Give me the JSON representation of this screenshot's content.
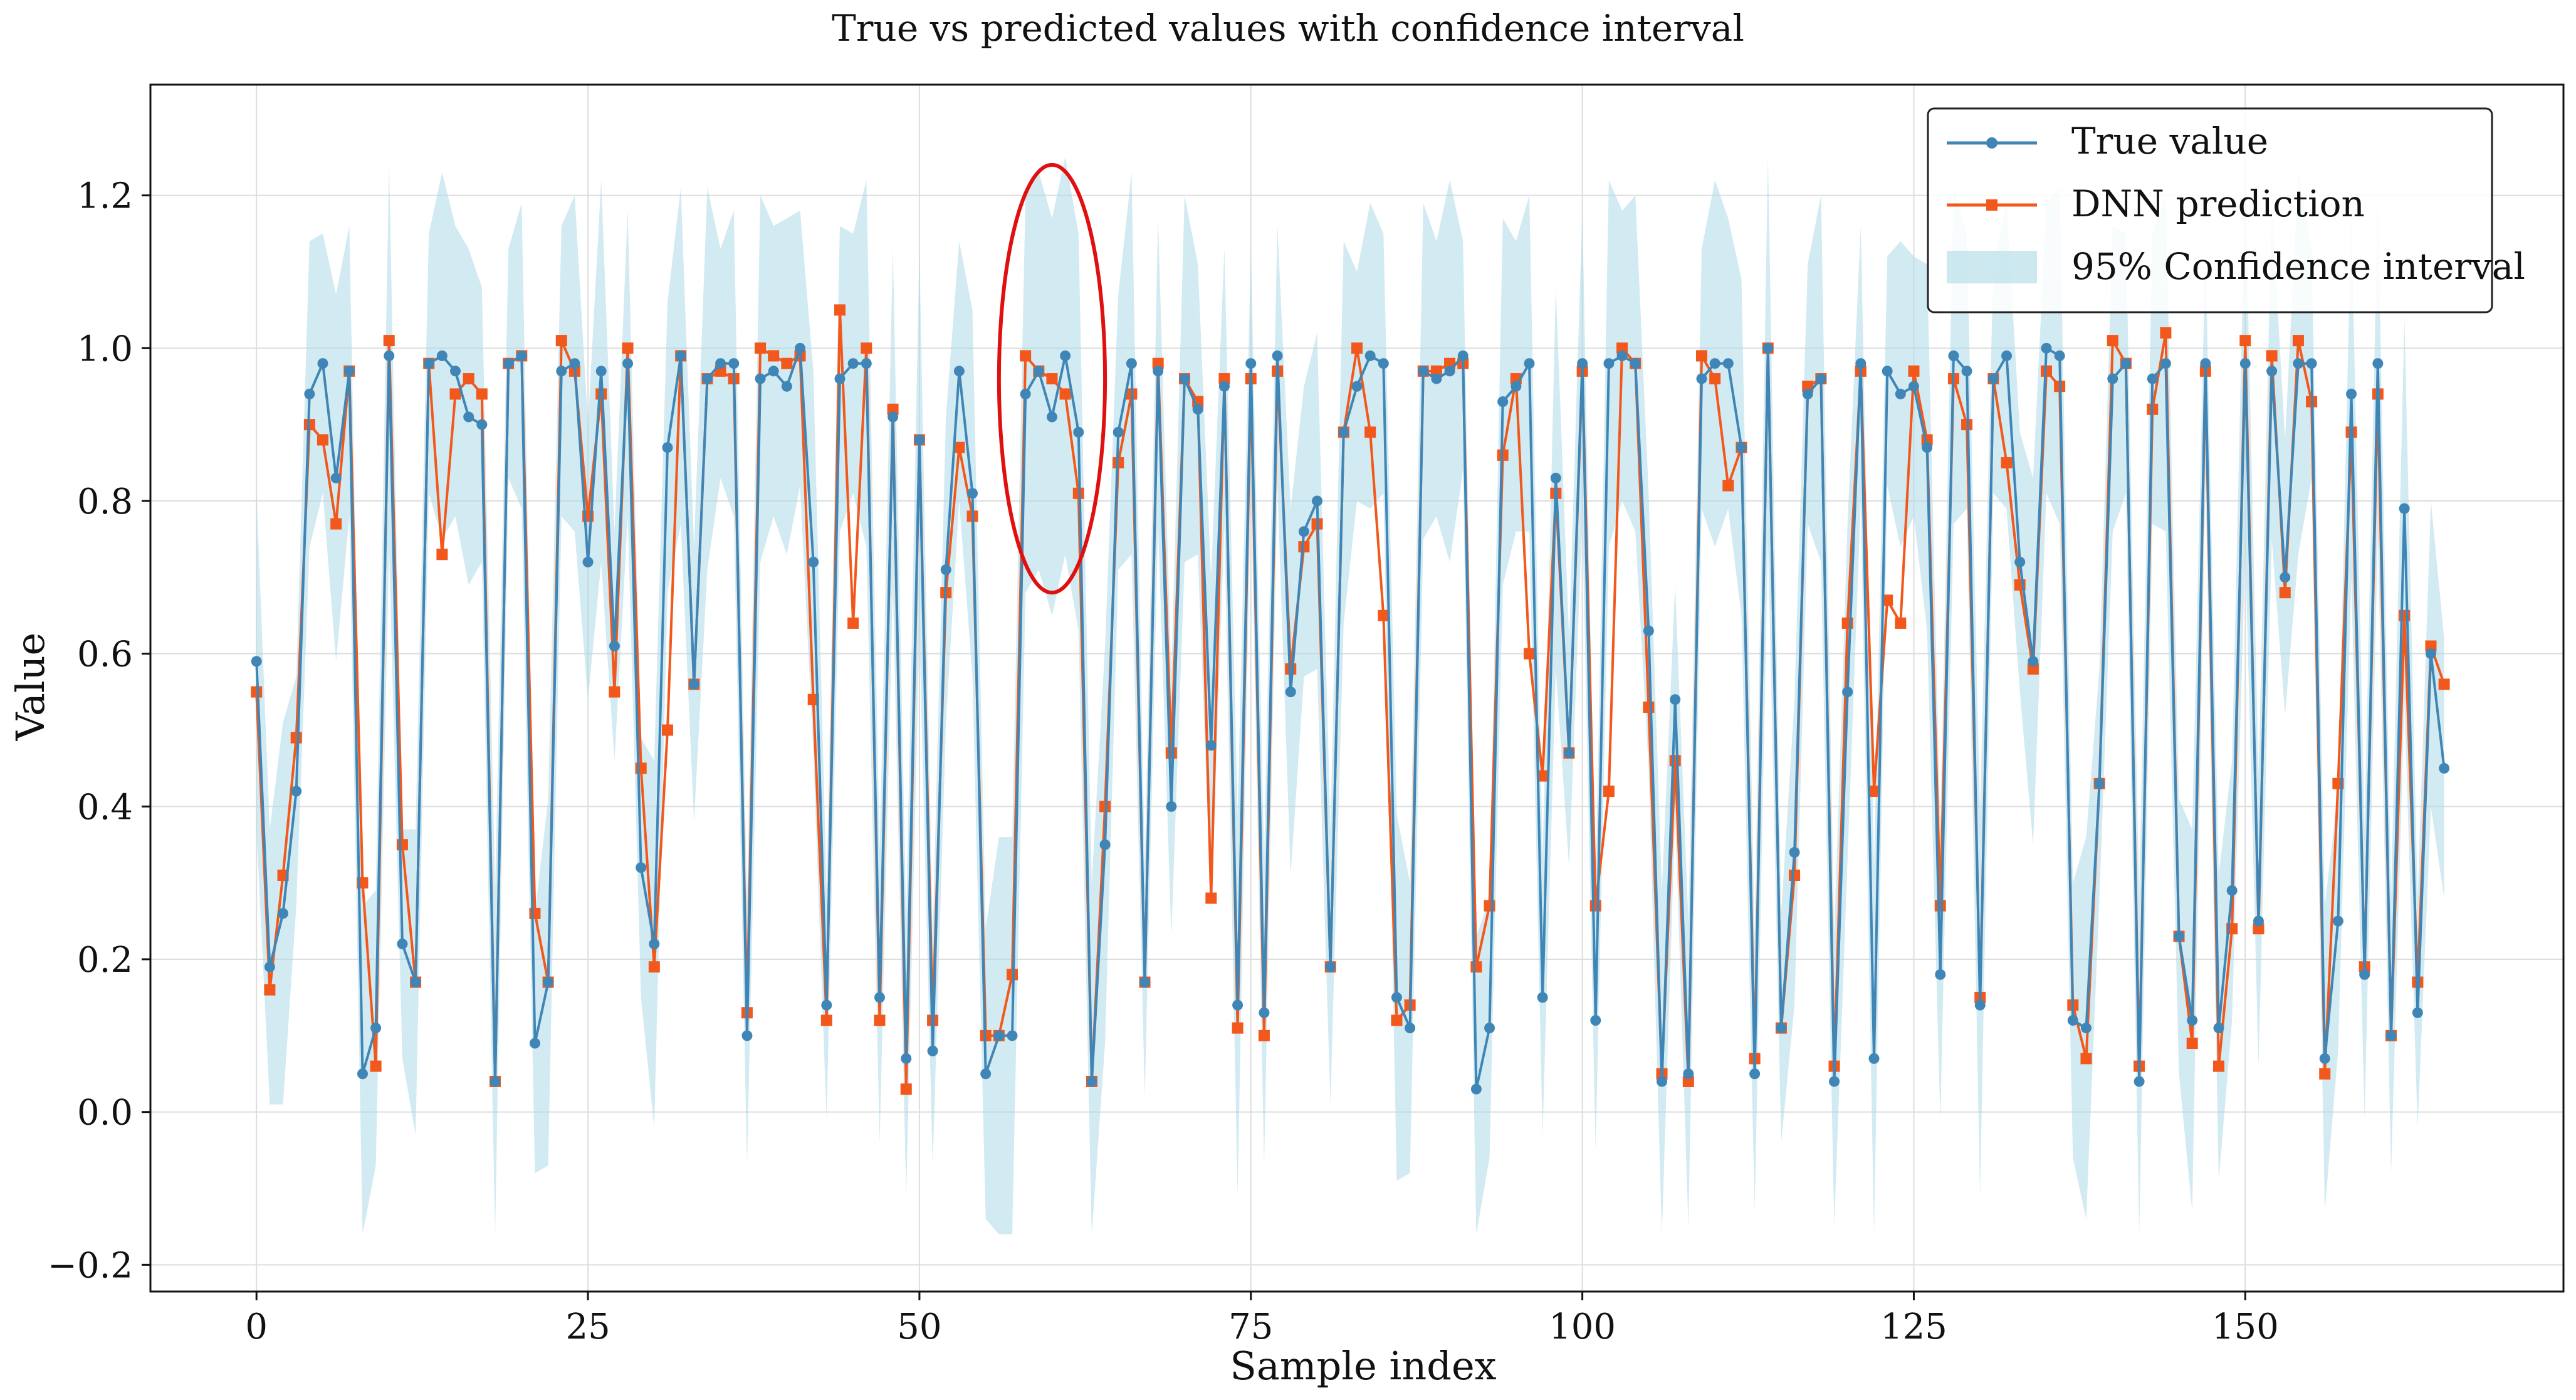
{
  "chart_data": {
    "type": "line",
    "title": "True vs predicted values with confidence interval",
    "xlabel": "Sample index",
    "ylabel": "Value",
    "xlim": [
      -8,
      174
    ],
    "ylim": [
      -0.235,
      1.345
    ],
    "xticks": [
      0,
      25,
      50,
      75,
      100,
      125,
      150
    ],
    "xtick_labels": [
      "0",
      "25",
      "50",
      "75",
      "100",
      "125",
      "150"
    ],
    "yticks": [
      -0.2,
      0.0,
      0.2,
      0.4,
      0.6,
      0.8,
      1.0,
      1.2
    ],
    "ytick_labels": [
      "−0.2",
      "0.0",
      "0.2",
      "0.4",
      "0.6",
      "0.8",
      "1.0",
      "1.2"
    ],
    "grid": true,
    "legend_position": "top-right",
    "colors": {
      "true": "#3f86b7",
      "pred": "#f2581b",
      "ci": "#add8e6",
      "highlight": "#e01010"
    },
    "highlight_region": {
      "x_center": 60,
      "x_halfwidth": 4,
      "y_min": 0.68,
      "y_max": 1.24
    },
    "series": [
      {
        "name": "True value",
        "marker": "circle",
        "values": [
          0.59,
          0.19,
          0.26,
          0.42,
          0.94,
          0.98,
          0.83,
          0.97,
          0.05,
          0.11,
          0.99,
          0.22,
          0.17,
          0.98,
          0.99,
          0.97,
          0.91,
          0.9,
          0.04,
          0.98,
          0.99,
          0.09,
          0.17,
          0.97,
          0.98,
          0.72,
          0.97,
          0.61,
          0.98,
          0.32,
          0.22,
          0.87,
          0.99,
          0.56,
          0.96,
          0.98,
          0.98,
          0.1,
          0.96,
          0.97,
          0.95,
          1.0,
          0.72,
          0.14,
          0.96,
          0.98,
          0.98,
          0.15,
          0.91,
          0.07,
          0.88,
          0.08,
          0.71,
          0.97,
          0.81,
          0.05,
          0.1,
          0.1,
          0.94,
          0.97,
          0.91,
          0.99,
          0.89,
          0.04,
          0.35,
          0.89,
          0.98,
          0.17,
          0.97,
          0.4,
          0.96,
          0.92,
          0.48,
          0.95,
          0.14,
          0.98,
          0.13,
          0.99,
          0.55,
          0.76,
          0.8,
          0.19,
          0.89,
          0.95,
          0.99,
          0.98,
          0.15,
          0.11,
          0.97,
          0.96,
          0.97,
          0.99,
          0.03,
          0.11,
          0.93,
          0.95,
          0.98,
          0.15,
          0.83,
          0.47,
          0.98,
          0.12,
          0.98,
          0.99,
          0.98,
          0.63,
          0.04,
          0.54,
          0.05,
          0.96,
          0.98,
          0.98,
          0.87,
          0.05,
          1.0,
          0.11,
          0.34,
          0.94,
          0.96,
          0.04,
          0.55,
          0.98,
          0.07,
          0.97,
          0.94,
          0.95,
          0.87,
          0.18,
          0.99,
          0.97,
          0.14,
          0.96,
          0.99,
          0.72,
          0.59,
          1.0,
          0.99,
          0.12,
          0.11,
          0.43,
          0.96,
          0.98,
          0.04,
          0.96,
          0.98,
          0.23,
          0.12,
          0.98,
          0.11,
          0.29,
          0.98,
          0.25,
          0.97,
          0.7,
          0.98,
          0.98,
          0.07,
          0.25,
          0.94,
          0.18,
          0.98,
          0.1,
          0.79,
          0.13,
          0.6,
          0.45
        ],
        "x_start": 0
      },
      {
        "name": "DNN prediction",
        "marker": "square",
        "values": [
          0.55,
          0.16,
          0.31,
          0.49,
          0.9,
          0.88,
          0.77,
          0.97,
          0.3,
          0.06,
          1.01,
          0.35,
          0.17,
          0.98,
          0.73,
          0.94,
          0.96,
          0.94,
          0.04,
          0.98,
          0.99,
          0.26,
          0.17,
          1.01,
          0.97,
          0.78,
          0.94,
          0.55,
          1.0,
          0.45,
          0.19,
          0.5,
          0.99,
          0.56,
          0.96,
          0.97,
          0.96,
          0.13,
          1.0,
          0.99,
          0.98,
          0.99,
          0.54,
          0.12,
          1.05,
          0.64,
          1.0,
          0.12,
          0.92,
          0.03,
          0.88,
          0.12,
          0.68,
          0.87,
          0.78,
          0.1,
          0.1,
          0.18,
          0.99,
          0.97,
          0.96,
          0.94,
          0.81,
          0.04,
          0.4,
          0.85,
          0.94,
          0.17,
          0.98,
          0.47,
          0.96,
          0.93,
          0.28,
          0.96,
          0.11,
          0.96,
          0.1,
          0.97,
          0.58,
          0.74,
          0.77,
          0.19,
          0.89,
          1.0,
          0.89,
          0.65,
          0.12,
          0.14,
          0.97,
          0.97,
          0.98,
          0.98,
          0.19,
          0.27,
          0.86,
          0.96,
          0.6,
          0.44,
          0.81,
          0.47,
          0.97,
          0.27,
          0.42,
          1.0,
          0.98,
          0.53,
          0.05,
          0.46,
          0.04,
          0.99,
          0.96,
          0.82,
          0.87,
          0.07,
          1.0,
          0.11,
          0.31,
          0.95,
          0.96,
          0.06,
          0.64,
          0.97,
          0.42,
          0.67,
          0.64,
          0.97,
          0.88,
          0.27,
          0.96,
          0.9,
          0.15,
          0.96,
          0.85,
          0.69,
          0.58,
          0.97,
          0.95,
          0.14,
          0.07,
          0.43,
          1.01,
          0.98,
          0.06,
          0.92,
          1.02,
          0.23,
          0.09,
          0.97,
          0.06,
          0.24,
          1.01,
          0.24,
          0.99,
          0.68,
          1.01,
          0.93,
          0.05,
          0.43,
          0.89,
          0.19,
          0.94,
          0.1,
          0.65,
          0.17,
          0.61,
          0.56
        ],
        "x_start": 0
      }
    ],
    "confidence_interval": {
      "name": "95% Confidence interval",
      "half_width_pattern": [
        0.22,
        0.18,
        0.25,
        0.15,
        0.2,
        0.17,
        0.24,
        0.19
      ],
      "highlight_half_width": 0.26
    }
  }
}
